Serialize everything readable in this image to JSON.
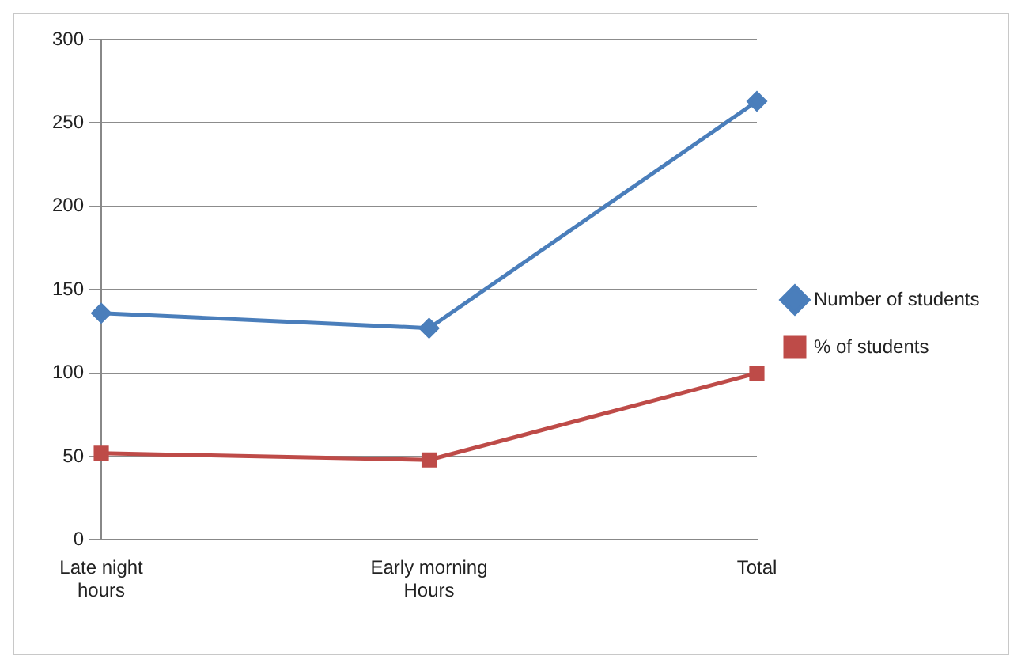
{
  "chart_data": {
    "type": "line",
    "categories": [
      "Late night hours",
      "Early morning Hours",
      "Total"
    ],
    "series": [
      {
        "name": "Number of students",
        "color": "#4a7ebb",
        "values": [
          136,
          127,
          263
        ],
        "marker": "diamond"
      },
      {
        "name": "% of students",
        "color": "#be4b48",
        "values": [
          52,
          48,
          100
        ],
        "marker": "square"
      }
    ],
    "ylim": [
      0,
      300
    ],
    "yticks": [
      0,
      50,
      100,
      150,
      200,
      250,
      300
    ],
    "grid": "y",
    "legend": "right"
  }
}
